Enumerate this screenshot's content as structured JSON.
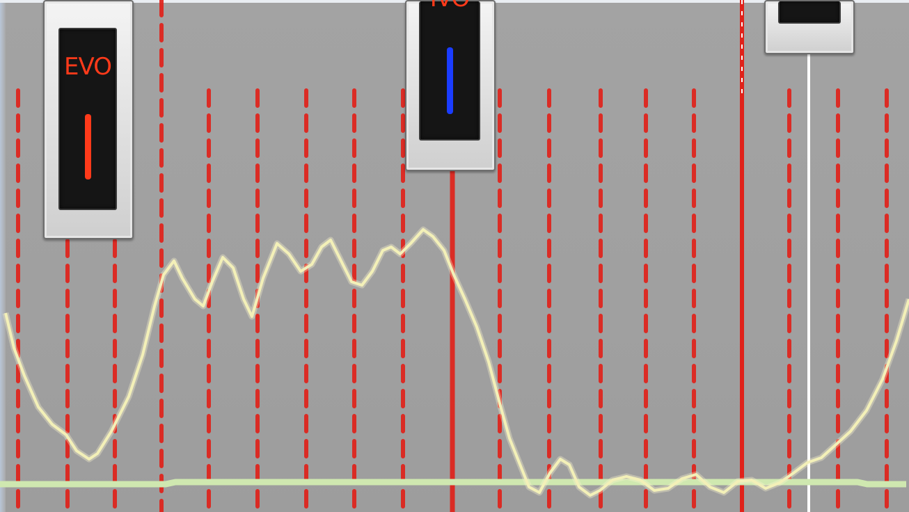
{
  "markers": [
    {
      "name": "marker-evo",
      "label": "EVO",
      "label_color": "#ff3a1a",
      "bar_color": "#ff3a1a"
    },
    {
      "name": "marker-ivo",
      "label": "IVO",
      "label_color": "#ff3a1a",
      "bar_color": "#1a3cff"
    },
    {
      "name": "marker-third",
      "label": "",
      "label_color": "#ff3a1a",
      "bar_color": ""
    }
  ],
  "colors": {
    "background": "#a0a0a0",
    "gridline": "#e0221a",
    "waveform": "#f3f0b8",
    "baseline": "#cfe8b0",
    "cursor": "#ffffff"
  }
}
